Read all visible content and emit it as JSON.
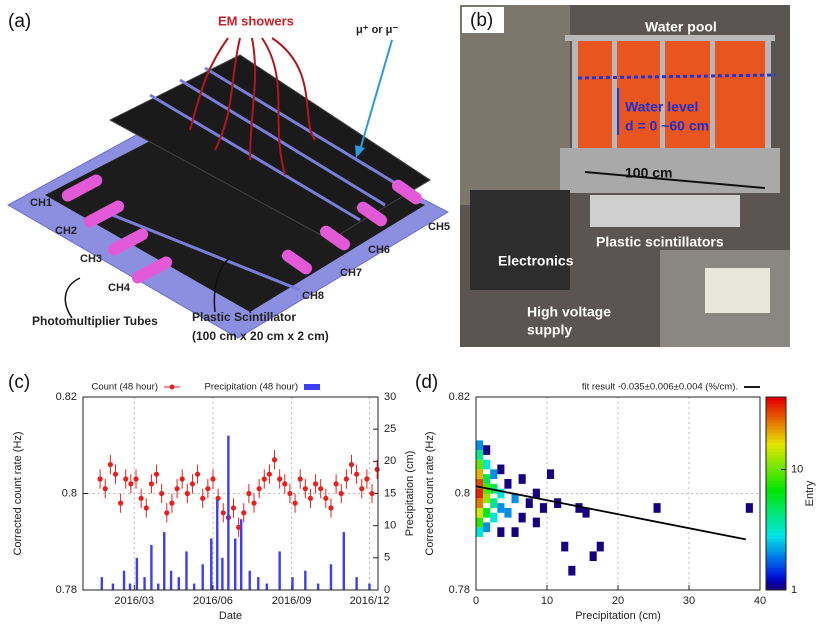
{
  "panel_a": {
    "label": "(a)",
    "showers": "EM showers",
    "muon": "μ⁺ or μ⁻",
    "channels": [
      "CH1",
      "CH2",
      "CH3",
      "CH4",
      "CH5",
      "CH6",
      "CH7",
      "CH8"
    ],
    "pmt": "Photomultiplier Tubes",
    "scintillator": "Plastic Scintillator",
    "size": "(100 cm x 20 cm x 2 cm)"
  },
  "panel_b": {
    "label": "(b)",
    "pool": "Water pool",
    "level": "Water level",
    "depth": "d = 0 ~60 cm",
    "width": "100 cm",
    "scintillators": "Plastic scintillators",
    "electronics": "Electronics",
    "hv": [
      "High voltage",
      "supply"
    ]
  },
  "chart_data": [
    {
      "type": "timeseries",
      "label": "(c)",
      "xlabel": "Date",
      "ylabel": "Corrected count rate (Hz)",
      "y2label": "Precipitation (cm)",
      "xlim": [
        0,
        345
      ],
      "xticks": [
        {
          "value": 60,
          "label": "2016/03"
        },
        {
          "value": 152,
          "label": "2016/06"
        },
        {
          "value": 244,
          "label": "2016/09"
        },
        {
          "value": 335,
          "label": "2016/12"
        }
      ],
      "ylim": [
        0.78,
        0.82
      ],
      "yticks": [
        0.78,
        0.8,
        0.82
      ],
      "y2lim": [
        0,
        30
      ],
      "y2ticks": [
        0,
        5,
        10,
        15,
        20,
        25,
        30
      ],
      "grid": true,
      "series": [
        {
          "name": "Count (48 hour)",
          "type": "errorbar",
          "color": "#e8201d",
          "x": [
            20,
            26,
            32,
            38,
            44,
            50,
            56,
            62,
            68,
            74,
            80,
            86,
            92,
            98,
            104,
            110,
            116,
            122,
            128,
            134,
            140,
            146,
            152,
            158,
            164,
            170,
            176,
            182,
            188,
            194,
            200,
            206,
            212,
            218,
            224,
            230,
            236,
            242,
            248,
            254,
            260,
            266,
            272,
            278,
            284,
            290,
            296,
            302,
            308,
            314,
            320,
            326,
            332,
            338,
            344
          ],
          "values": [
            0.803,
            0.801,
            0.806,
            0.804,
            0.798,
            0.803,
            0.802,
            0.803,
            0.799,
            0.797,
            0.802,
            0.804,
            0.8,
            0.796,
            0.798,
            0.801,
            0.803,
            0.8,
            0.802,
            0.804,
            0.799,
            0.801,
            0.803,
            0.799,
            0.796,
            0.795,
            0.797,
            0.793,
            0.796,
            0.8,
            0.798,
            0.801,
            0.803,
            0.804,
            0.807,
            0.803,
            0.802,
            0.8,
            0.798,
            0.803,
            0.801,
            0.799,
            0.802,
            0.801,
            0.799,
            0.797,
            0.802,
            0.8,
            0.803,
            0.806,
            0.804,
            0.801,
            0.803,
            0.8,
            0.805
          ],
          "errors": [
            0.002,
            0.002,
            0.002,
            0.002,
            0.002,
            0.002,
            0.002,
            0.002,
            0.002,
            0.002,
            0.002,
            0.002,
            0.002,
            0.002,
            0.002,
            0.002,
            0.002,
            0.002,
            0.002,
            0.002,
            0.002,
            0.002,
            0.002,
            0.002,
            0.002,
            0.002,
            0.002,
            0.002,
            0.002,
            0.002,
            0.002,
            0.002,
            0.002,
            0.002,
            0.002,
            0.002,
            0.002,
            0.002,
            0.002,
            0.002,
            0.002,
            0.002,
            0.002,
            0.002,
            0.002,
            0.002,
            0.002,
            0.002,
            0.002,
            0.002,
            0.002,
            0.002,
            0.002,
            0.002,
            0.002
          ]
        },
        {
          "name": "Precipitation (48 hour)",
          "type": "bar",
          "axis": "y2",
          "color": "#3d3df5",
          "x": [
            22,
            35,
            48,
            55,
            63,
            72,
            80,
            88,
            95,
            103,
            112,
            121,
            130,
            140,
            150,
            157,
            163,
            170,
            178,
            185,
            195,
            205,
            215,
            230,
            245,
            260,
            275,
            290,
            305,
            320,
            335
          ],
          "values": [
            2,
            1,
            3,
            1,
            5,
            2,
            7,
            1,
            9,
            3,
            2,
            6,
            1,
            4,
            8,
            14,
            5,
            24,
            8,
            11,
            3,
            2,
            1,
            6,
            2,
            3,
            1,
            4,
            9,
            2,
            1
          ]
        }
      ]
    },
    {
      "type": "heatmap",
      "label": "(d)",
      "xlabel": "Precipitation (cm)",
      "ylabel": "Corrected count rate (Hz)",
      "xlim": [
        0,
        40
      ],
      "xticks": [
        0,
        10,
        20,
        30,
        40
      ],
      "ylim": [
        0.78,
        0.82
      ],
      "yticks": [
        0.78,
        0.8,
        0.82
      ],
      "grid": true,
      "x": [
        0,
        0,
        0,
        0,
        0,
        0,
        0,
        0,
        0,
        0,
        1,
        1,
        1,
        1,
        1,
        1,
        1,
        2,
        2,
        2,
        2,
        3,
        3,
        3,
        3,
        4,
        4,
        5,
        5,
        6,
        6,
        7,
        8,
        8,
        9,
        10,
        11,
        12,
        13,
        14,
        15,
        16,
        17,
        25,
        38
      ],
      "y": [
        0.791,
        0.793,
        0.795,
        0.797,
        0.799,
        0.801,
        0.803,
        0.805,
        0.807,
        0.809,
        0.792,
        0.795,
        0.798,
        0.8,
        0.802,
        0.805,
        0.808,
        0.794,
        0.797,
        0.8,
        0.803,
        0.791,
        0.796,
        0.799,
        0.804,
        0.795,
        0.801,
        0.798,
        0.791,
        0.802,
        0.794,
        0.797,
        0.799,
        0.793,
        0.796,
        0.803,
        0.797,
        0.788,
        0.783,
        0.796,
        0.795,
        0.786,
        0.788,
        0.796,
        0.796
      ],
      "values": [
        3,
        8,
        15,
        25,
        35,
        30,
        20,
        10,
        4,
        2,
        2,
        6,
        12,
        9,
        5,
        3,
        1,
        3,
        4,
        5,
        2,
        1,
        2,
        3,
        1,
        2,
        1,
        2,
        1,
        1,
        1,
        1,
        1,
        1,
        1,
        1,
        1,
        1,
        1,
        1,
        1,
        1,
        1,
        1,
        1
      ],
      "fit": {
        "name": "fit result -0.035±0.006±0.004 (%/cm).",
        "x": [
          0,
          38
        ],
        "y": [
          0.8015,
          0.7905
        ],
        "color": "#000000"
      },
      "colorbar": {
        "label": "Entry",
        "lim": [
          1,
          40
        ],
        "ticks": [
          1,
          10
        ],
        "log": true
      }
    }
  ]
}
